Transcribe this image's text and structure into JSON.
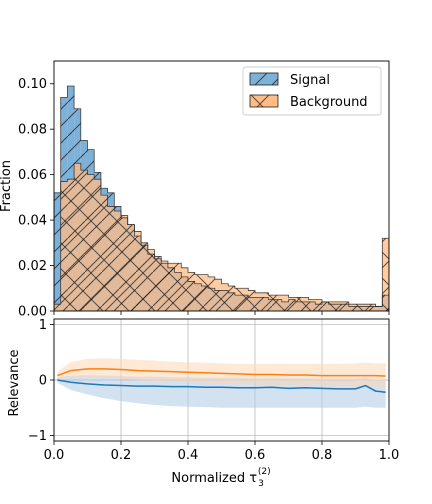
{
  "colors": {
    "signal": "#1f77b4",
    "signal_fill": "#7eb1d8",
    "background": "#ff7f0e",
    "background_fill": "#ffbc86",
    "overlap_fill": "#c47f4a",
    "signal_band": "#aecbe6",
    "background_band": "#fdd6b4",
    "grid": "#b0b0b0",
    "edge": "#000000"
  },
  "chart_data": [
    {
      "type": "histogram",
      "ylabel": "Fraction",
      "xlim": [
        0,
        1
      ],
      "ylim": [
        0,
        0.11
      ],
      "yticks": [
        "0.00",
        "0.02",
        "0.04",
        "0.06",
        "0.08",
        "0.10"
      ],
      "show_xticklabels": false,
      "legend_position": "top-right",
      "bin_width": 0.02,
      "series": [
        {
          "name": "Signal",
          "hatch": "forward-diagonal",
          "values": [
            0.052,
            0.094,
            0.099,
            0.089,
            0.075,
            0.071,
            0.061,
            0.054,
            0.052,
            0.046,
            0.041,
            0.038,
            0.033,
            0.029,
            0.025,
            0.023,
            0.021,
            0.019,
            0.017,
            0.015,
            0.013,
            0.012,
            0.011,
            0.01,
            0.009,
            0.009,
            0.008,
            0.007,
            0.007,
            0.006,
            0.006,
            0.006,
            0.005,
            0.005,
            0.004,
            0.005,
            0.004,
            0.004,
            0.004,
            0.003,
            0.004,
            0.003,
            0.003,
            0.003,
            0.002,
            0.002,
            0.002,
            0.002,
            0.002,
            0.007
          ]
        },
        {
          "name": "Background",
          "hatch": "cross-diagonal",
          "values": [
            0.003,
            0.057,
            0.058,
            0.065,
            0.062,
            0.06,
            0.058,
            0.051,
            0.046,
            0.044,
            0.042,
            0.038,
            0.035,
            0.03,
            0.027,
            0.024,
            0.022,
            0.021,
            0.021,
            0.019,
            0.017,
            0.016,
            0.016,
            0.015,
            0.014,
            0.012,
            0.011,
            0.01,
            0.01,
            0.009,
            0.008,
            0.008,
            0.007,
            0.007,
            0.007,
            0.006,
            0.006,
            0.006,
            0.005,
            0.005,
            0.004,
            0.004,
            0.004,
            0.004,
            0.003,
            0.003,
            0.003,
            0.003,
            0.002,
            0.032
          ]
        }
      ]
    },
    {
      "type": "line",
      "xlabel": "Normalized τ",
      "xlabel_sub": "3",
      "xlabel_sup": "(2)",
      "ylabel": "Relevance",
      "xlim": [
        0,
        1
      ],
      "ylim": [
        -1.1,
        1.1
      ],
      "xticks": [
        "0.0",
        "0.2",
        "0.4",
        "0.6",
        "0.8",
        "1.0"
      ],
      "yticks": [
        "−1",
        "0",
        "1"
      ],
      "grid": true,
      "series": [
        {
          "name": "Signal",
          "x": [
            0.01,
            0.05,
            0.1,
            0.15,
            0.2,
            0.25,
            0.3,
            0.35,
            0.4,
            0.45,
            0.5,
            0.55,
            0.6,
            0.65,
            0.7,
            0.75,
            0.8,
            0.85,
            0.9,
            0.93,
            0.96,
            0.99
          ],
          "y": [
            0.0,
            -0.04,
            -0.07,
            -0.09,
            -0.1,
            -0.11,
            -0.11,
            -0.12,
            -0.12,
            -0.13,
            -0.13,
            -0.14,
            -0.14,
            -0.13,
            -0.15,
            -0.14,
            -0.15,
            -0.16,
            -0.16,
            -0.1,
            -0.2,
            -0.22
          ],
          "band": {
            "upper": [
              0.05,
              0.08,
              0.09,
              0.08,
              0.07,
              0.06,
              0.06,
              0.05,
              0.05,
              0.04,
              0.04,
              0.04,
              0.03,
              0.04,
              0.03,
              0.03,
              0.02,
              0.02,
              0.02,
              0.05,
              0.0,
              0.0
            ],
            "lower": [
              -0.05,
              -0.18,
              -0.26,
              -0.33,
              -0.38,
              -0.42,
              -0.45,
              -0.47,
              -0.48,
              -0.49,
              -0.5,
              -0.5,
              -0.5,
              -0.5,
              -0.5,
              -0.5,
              -0.5,
              -0.5,
              -0.5,
              -0.48,
              -0.5,
              -0.5
            ]
          }
        },
        {
          "name": "Background",
          "x": [
            0.01,
            0.05,
            0.1,
            0.15,
            0.2,
            0.25,
            0.3,
            0.35,
            0.4,
            0.45,
            0.5,
            0.55,
            0.6,
            0.65,
            0.7,
            0.75,
            0.8,
            0.85,
            0.9,
            0.93,
            0.96,
            0.99
          ],
          "y": [
            0.08,
            0.17,
            0.2,
            0.2,
            0.19,
            0.17,
            0.16,
            0.15,
            0.14,
            0.13,
            0.12,
            0.11,
            0.1,
            0.1,
            0.09,
            0.09,
            0.08,
            0.08,
            0.08,
            0.08,
            0.08,
            0.07
          ],
          "band": {
            "upper": [
              0.15,
              0.32,
              0.38,
              0.39,
              0.38,
              0.36,
              0.35,
              0.33,
              0.32,
              0.31,
              0.3,
              0.29,
              0.29,
              0.29,
              0.29,
              0.29,
              0.29,
              0.29,
              0.3,
              0.31,
              0.3,
              0.3
            ],
            "lower": [
              0.02,
              0.04,
              0.05,
              0.04,
              0.02,
              0.0,
              -0.02,
              -0.03,
              -0.04,
              -0.05,
              -0.06,
              -0.07,
              -0.08,
              -0.09,
              -0.1,
              -0.1,
              -0.11,
              -0.12,
              -0.12,
              -0.12,
              -0.12,
              -0.14
            ]
          }
        }
      ]
    }
  ]
}
